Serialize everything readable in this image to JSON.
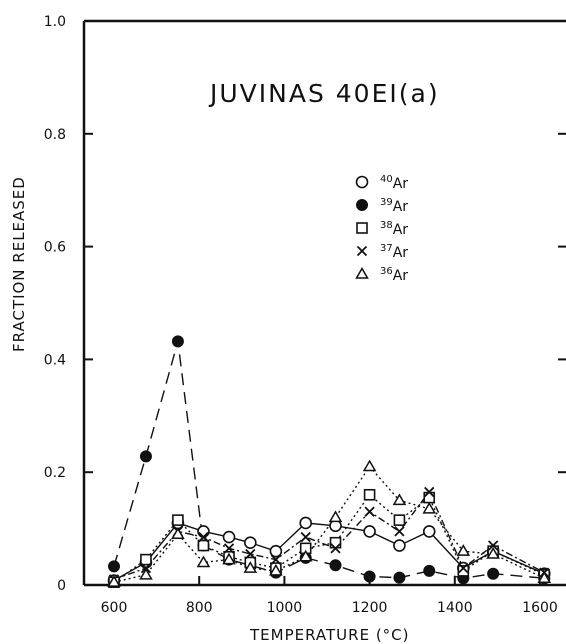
{
  "chart_data": {
    "type": "line",
    "title": "JUVINAS 40EI(a)",
    "xlabel": "TEMPERATURE (°C)",
    "ylabel": "FRACTION RELEASED",
    "xlim": [
      550,
      1620
    ],
    "ylim": [
      0,
      1.0
    ],
    "x_ticks": [
      600,
      800,
      1000,
      1200,
      1400,
      1600
    ],
    "x_tick_labels": [
      "600",
      "800",
      "1000",
      "1200",
      "1400",
      "1600"
    ],
    "y_ticks": [
      0,
      0.2,
      0.4,
      0.6,
      0.8,
      1.0
    ],
    "y_tick_labels": [
      "0",
      "0.2",
      "0.4",
      "0.6",
      "0.8",
      "1.0"
    ],
    "legend_position": "upper-right",
    "series": [
      {
        "name": "40Ar",
        "mass": "40",
        "element": "Ar",
        "marker": "open-circle",
        "line": "solid",
        "x": [
          600,
          675,
          750,
          810,
          870,
          920,
          980,
          1050,
          1120,
          1200,
          1270,
          1340,
          1420,
          1490,
          1610
        ],
        "y": [
          0.008,
          0.04,
          0.11,
          0.095,
          0.085,
          0.075,
          0.06,
          0.11,
          0.105,
          0.095,
          0.07,
          0.095,
          0.03,
          0.06,
          0.02
        ]
      },
      {
        "name": "39Ar",
        "mass": "39",
        "element": "Ar",
        "marker": "filled-circle",
        "line": "long-dash",
        "x": [
          600,
          675,
          750,
          810,
          870,
          920,
          980,
          1050,
          1120,
          1200,
          1270,
          1340,
          1420,
          1490,
          1610
        ],
        "y": [
          0.033,
          0.228,
          0.432,
          0.07,
          0.045,
          0.035,
          0.022,
          0.048,
          0.035,
          0.015,
          0.013,
          0.025,
          0.012,
          0.02,
          0.012
        ]
      },
      {
        "name": "38Ar",
        "mass": "38",
        "element": "Ar",
        "marker": "open-square",
        "line": "dotted",
        "x": [
          600,
          675,
          750,
          810,
          870,
          920,
          980,
          1050,
          1120,
          1200,
          1270,
          1340,
          1420,
          1490,
          1610
        ],
        "y": [
          0.005,
          0.045,
          0.115,
          0.07,
          0.05,
          0.04,
          0.03,
          0.065,
          0.075,
          0.16,
          0.115,
          0.155,
          0.025,
          0.06,
          0.018
        ]
      },
      {
        "name": "37Ar",
        "mass": "37",
        "element": "Ar",
        "marker": "x",
        "line": "dot-dash",
        "x": [
          600,
          675,
          750,
          810,
          870,
          920,
          980,
          1050,
          1120,
          1200,
          1270,
          1340,
          1420,
          1490,
          1610
        ],
        "y": [
          0.01,
          0.03,
          0.095,
          0.085,
          0.065,
          0.055,
          0.045,
          0.085,
          0.065,
          0.13,
          0.095,
          0.165,
          0.03,
          0.07,
          0.022
        ]
      },
      {
        "name": "36Ar",
        "mass": "36",
        "element": "Ar",
        "marker": "open-triangle",
        "line": "dotted",
        "x": [
          600,
          675,
          750,
          810,
          870,
          920,
          980,
          1050,
          1120,
          1200,
          1270,
          1340,
          1420,
          1490,
          1610
        ],
        "y": [
          0.005,
          0.018,
          0.09,
          0.04,
          0.045,
          0.03,
          0.025,
          0.05,
          0.12,
          0.21,
          0.15,
          0.135,
          0.06,
          0.055,
          0.012
        ]
      }
    ]
  }
}
